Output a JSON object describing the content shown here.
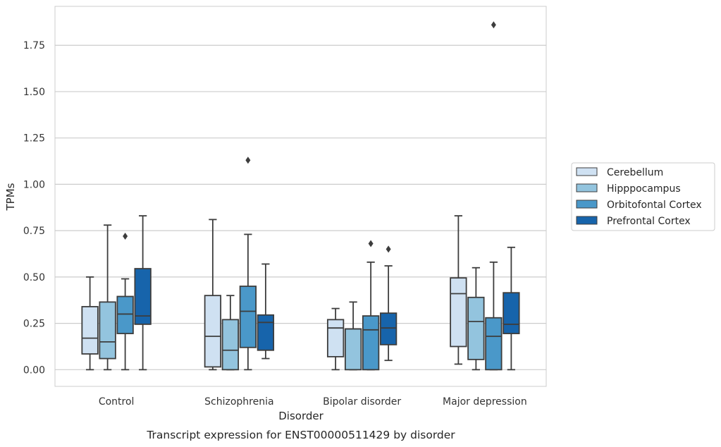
{
  "chart_data": {
    "type": "box",
    "title": "Transcript expression for ENST00000511429 by disorder",
    "xlabel": "Disorder",
    "ylabel": "TPMs",
    "ylim": [
      -0.09,
      1.96
    ],
    "yticks": [
      "0.00",
      "0.25",
      "0.50",
      "0.75",
      "1.00",
      "1.25",
      "1.50",
      "1.75"
    ],
    "grid": "horizontal",
    "legend_position": "right",
    "categories": [
      "Control",
      "Schizophrenia",
      "Bipolar disorder",
      "Major depression"
    ],
    "series": [
      {
        "name": "Cerebellum",
        "color": "#cfe1f2",
        "boxes": [
          {
            "whisker_low": 0.0,
            "q1": 0.085,
            "median": 0.17,
            "q3": 0.34,
            "whisker_high": 0.5,
            "outliers": []
          },
          {
            "whisker_low": 0.0,
            "q1": 0.015,
            "median": 0.18,
            "q3": 0.4,
            "whisker_high": 0.81,
            "outliers": []
          },
          {
            "whisker_low": 0.0,
            "q1": 0.07,
            "median": 0.225,
            "q3": 0.27,
            "whisker_high": 0.33,
            "outliers": []
          },
          {
            "whisker_low": 0.03,
            "q1": 0.125,
            "median": 0.41,
            "q3": 0.495,
            "whisker_high": 0.83,
            "outliers": []
          }
        ]
      },
      {
        "name": "Hipppocampus",
        "color": "#93c4de",
        "boxes": [
          {
            "whisker_low": 0.0,
            "q1": 0.06,
            "median": 0.15,
            "q3": 0.365,
            "whisker_high": 0.78,
            "outliers": []
          },
          {
            "whisker_low": 0.0,
            "q1": 0.0,
            "median": 0.105,
            "q3": 0.27,
            "whisker_high": 0.4,
            "outliers": []
          },
          {
            "whisker_low": 0.0,
            "q1": 0.0,
            "median": 0.22,
            "q3": 0.22,
            "whisker_high": 0.365,
            "outliers": []
          },
          {
            "whisker_low": 0.0,
            "q1": 0.055,
            "median": 0.26,
            "q3": 0.39,
            "whisker_high": 0.55,
            "outliers": []
          }
        ]
      },
      {
        "name": "Orbitofontal Cortex",
        "color": "#4a98c9",
        "boxes": [
          {
            "whisker_low": 0.0,
            "q1": 0.195,
            "median": 0.3,
            "q3": 0.395,
            "whisker_high": 0.49,
            "outliers": [
              0.72
            ]
          },
          {
            "whisker_low": 0.0,
            "q1": 0.12,
            "median": 0.315,
            "q3": 0.45,
            "whisker_high": 0.73,
            "outliers": [
              1.13
            ]
          },
          {
            "whisker_low": 0.0,
            "q1": 0.0,
            "median": 0.215,
            "q3": 0.29,
            "whisker_high": 0.58,
            "outliers": [
              0.68
            ]
          },
          {
            "whisker_low": 0.0,
            "q1": 0.0,
            "median": 0.18,
            "q3": 0.28,
            "whisker_high": 0.58,
            "outliers": [
              1.86
            ]
          }
        ]
      },
      {
        "name": "Prefrontal Cortex",
        "color": "#1764ab",
        "boxes": [
          {
            "whisker_low": 0.0,
            "q1": 0.245,
            "median": 0.29,
            "q3": 0.545,
            "whisker_high": 0.83,
            "outliers": []
          },
          {
            "whisker_low": 0.06,
            "q1": 0.105,
            "median": 0.255,
            "q3": 0.295,
            "whisker_high": 0.57,
            "outliers": []
          },
          {
            "whisker_low": 0.05,
            "q1": 0.135,
            "median": 0.225,
            "q3": 0.305,
            "whisker_high": 0.56,
            "outliers": [
              0.65
            ]
          },
          {
            "whisker_low": 0.0,
            "q1": 0.195,
            "median": 0.245,
            "q3": 0.415,
            "whisker_high": 0.66,
            "outliers": []
          }
        ]
      }
    ]
  },
  "colors": {
    "grid": "#cccccc",
    "frame": "#cccccc",
    "box_edge": "#3d3d3d",
    "outlier": "#3d3d3d"
  }
}
